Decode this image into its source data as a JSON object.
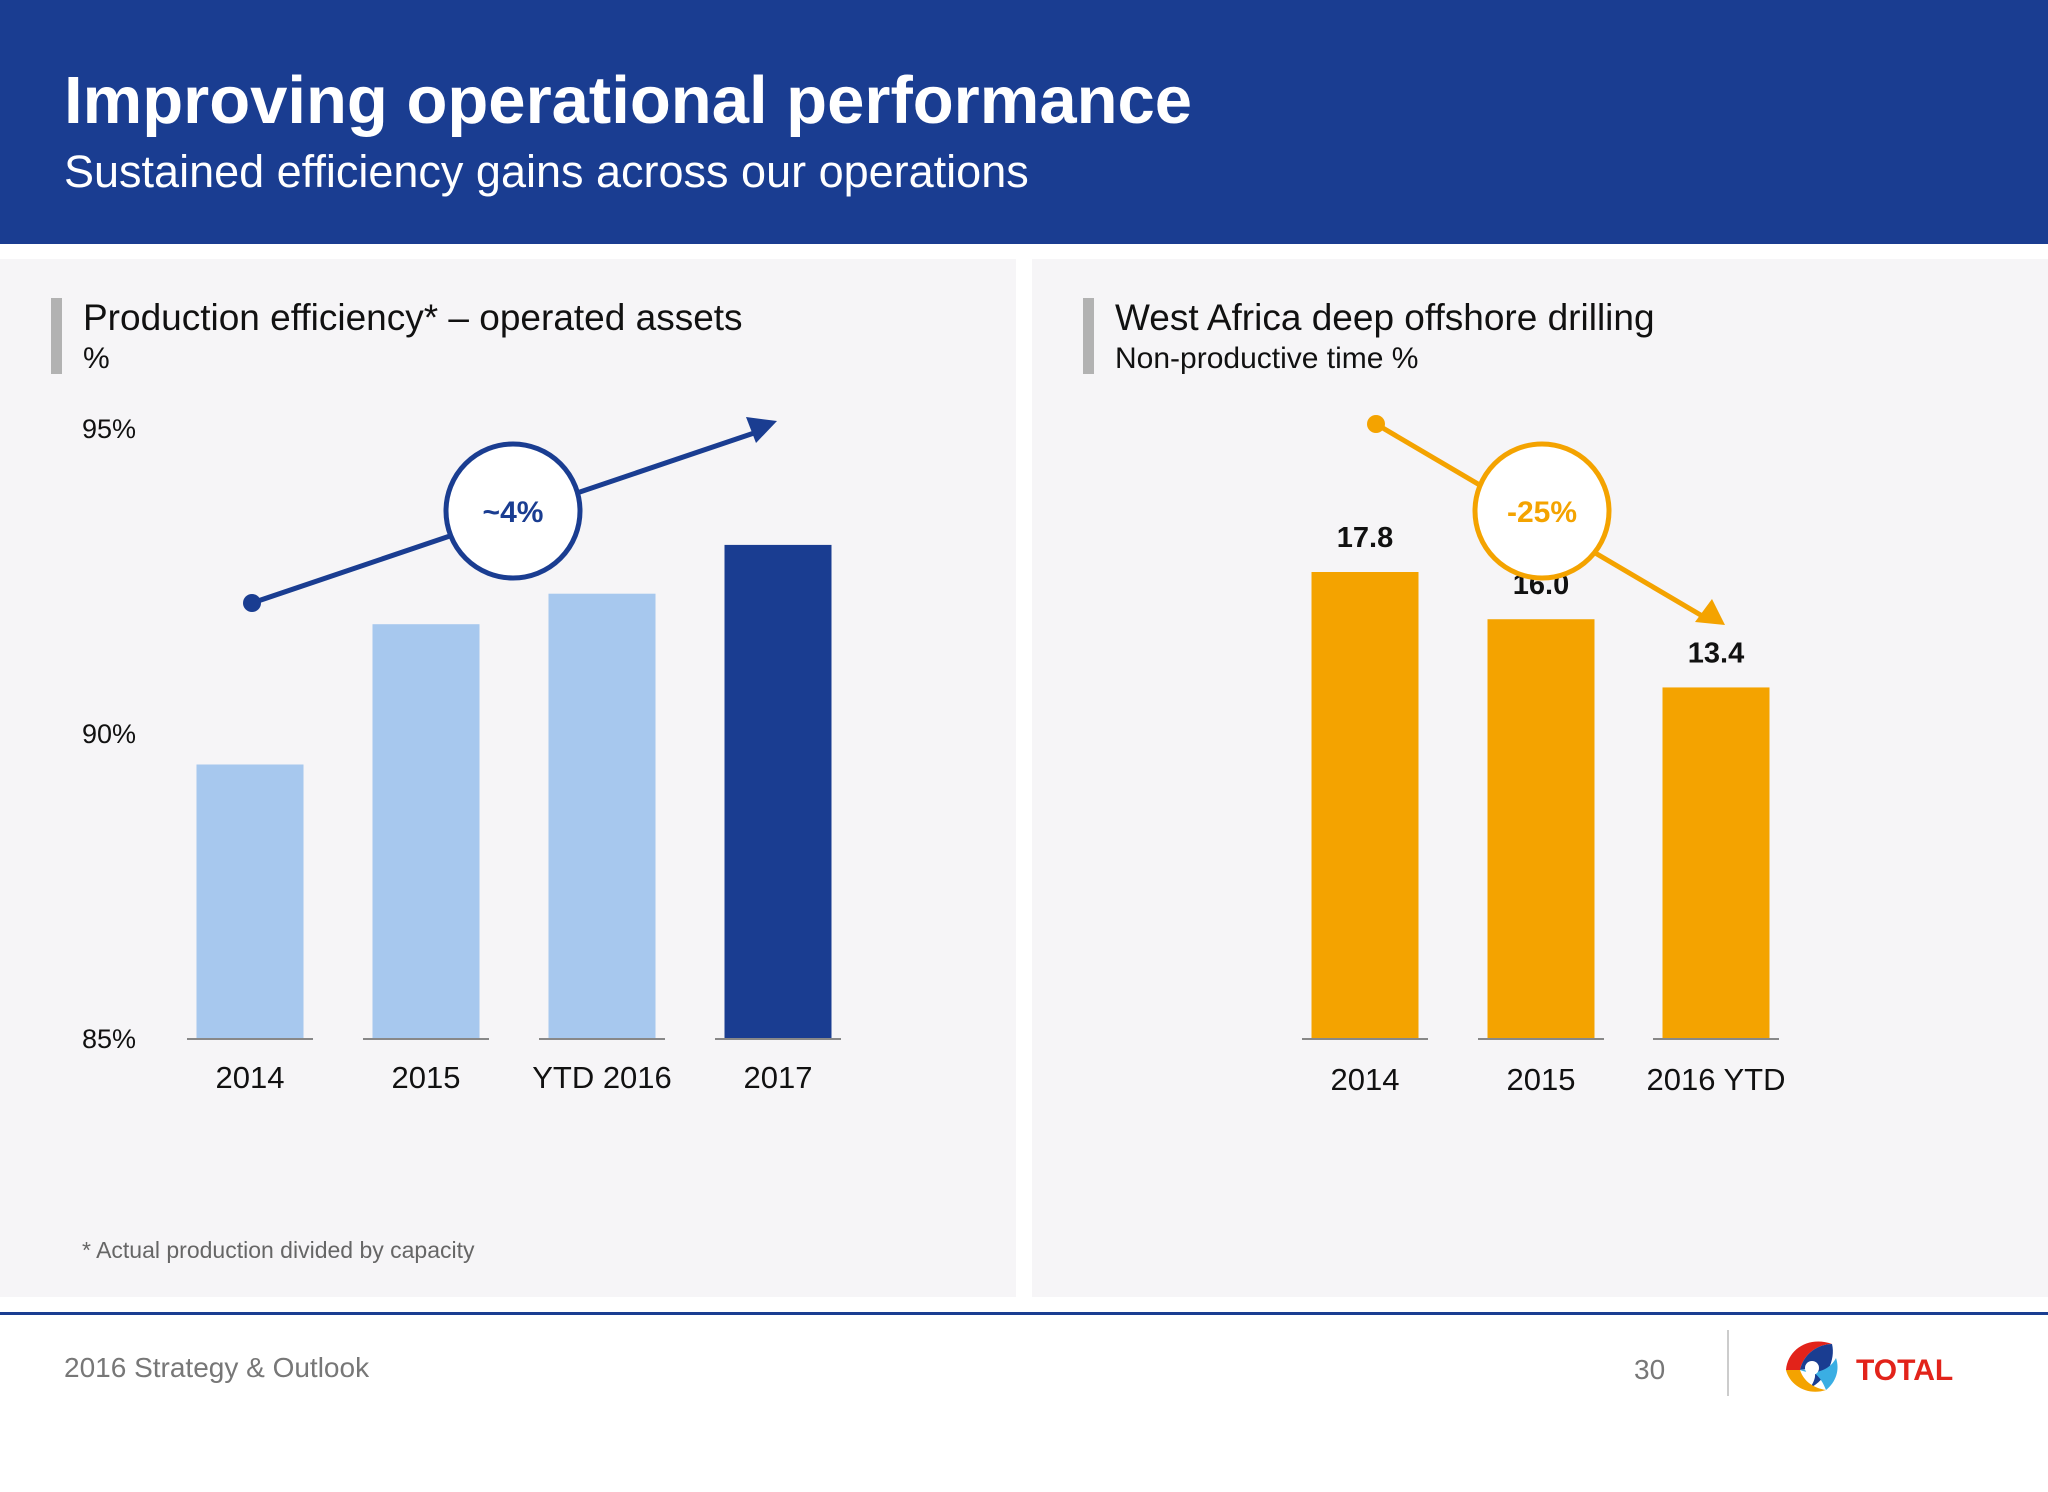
{
  "header": {
    "title": "Improving operational performance",
    "subtitle": "Sustained efficiency gains across our operations"
  },
  "chart_data": [
    {
      "type": "bar",
      "title": "Production efficiency* – operated assets",
      "ylabel": "%",
      "categories": [
        "2014",
        "2015",
        "YTD 2016",
        "2017"
      ],
      "values": [
        89.5,
        91.8,
        92.3,
        93.1
      ],
      "ylim": [
        85,
        95
      ],
      "yticks": [
        "85%",
        "90%",
        "95%"
      ],
      "bar_colors": [
        "#a7c8ee",
        "#a7c8ee",
        "#a7c8ee",
        "#1a3d91"
      ],
      "trend_annotation": "~4%",
      "trend_color": "#1a3d91",
      "footnote": "* Actual production divided by capacity"
    },
    {
      "type": "bar",
      "title": "West Africa deep offshore drilling",
      "ylabel": "Non-productive time %",
      "categories": [
        "2014",
        "2015",
        "2016 YTD"
      ],
      "values": [
        17.8,
        16.0,
        13.4
      ],
      "data_labels": [
        "17.8",
        "16.0",
        "13.4"
      ],
      "bar_color": "#f4a300",
      "trend_annotation": "-25%",
      "trend_color": "#f4a300"
    }
  ],
  "footer": {
    "text": "2016 Strategy & Outlook",
    "page": "30",
    "logo_text": "TOTAL"
  }
}
